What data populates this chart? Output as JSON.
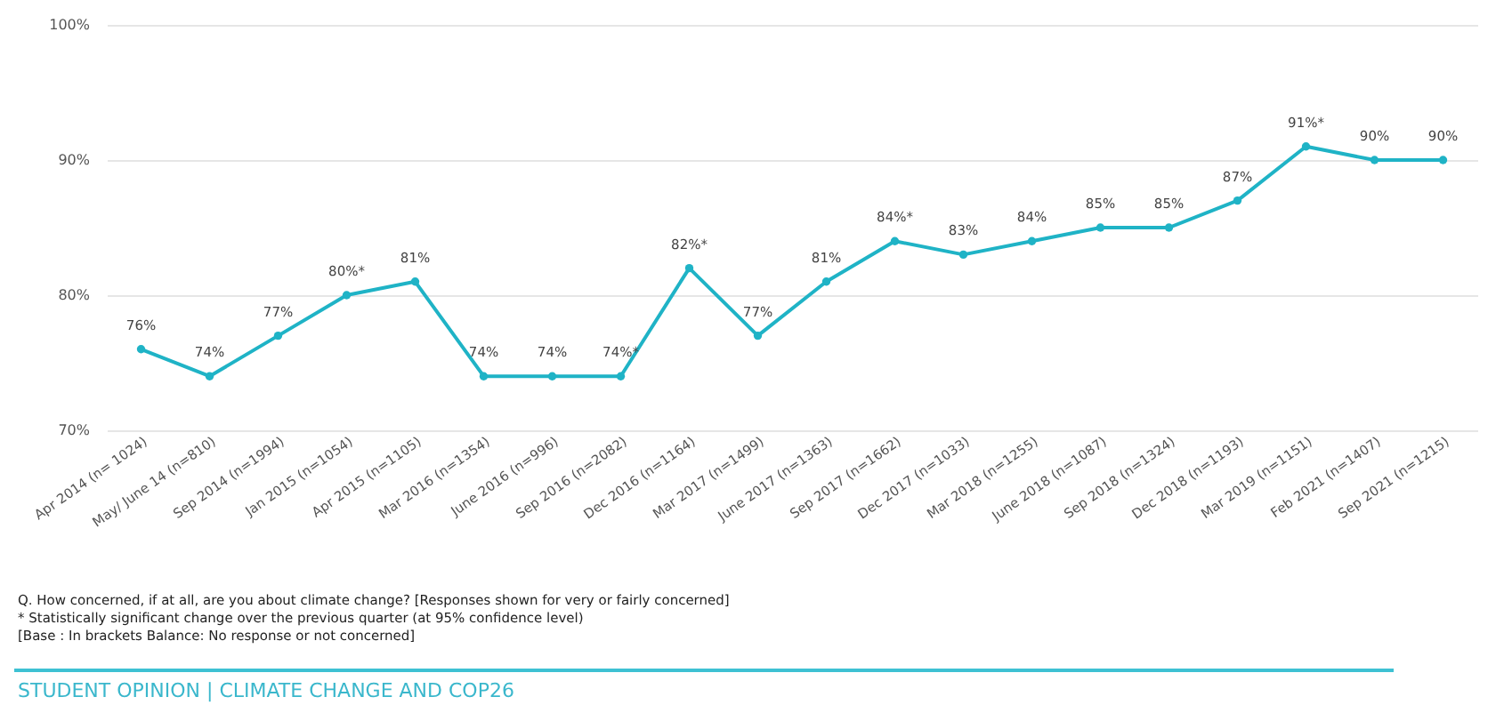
{
  "chart_data": {
    "type": "line",
    "categories": [
      "Apr 2014 (n= 1024)",
      "May/ June 14 (n=810)",
      "Sep 2014 (n=1994)",
      "Jan 2015 (n=1054)",
      "Apr 2015 (n=1105)",
      "Mar 2016 (n=1354)",
      "June 2016 (n=996)",
      "Sep 2016 (n=2082)",
      "Dec 2016 (n=1164)",
      "Mar 2017 (n=1499)",
      "June 2017 (n=1363)",
      "Sep 2017 (n=1662)",
      "Dec 2017 (n=1033)",
      "Mar 2018 (n=1255)",
      "June 2018 (n=1087)",
      "Sep 2018 (n=1324)",
      "Dec 2018 (n=1193)",
      "Mar 2019 (n=1151)",
      "Feb 2021 (n=1407)",
      "Sep 2021 (n=1215)"
    ],
    "series": [
      {
        "color": "#1fb3c6",
        "values": [
          76,
          74,
          77,
          80,
          81,
          74,
          74,
          74,
          82,
          77,
          81,
          84,
          83,
          84,
          85,
          85,
          87,
          91,
          90,
          90
        ],
        "value_labels": [
          "76%",
          "74%",
          "77%",
          "80%*",
          "81%",
          "74%",
          "74%",
          "74%*",
          "82%*",
          "77%",
          "81%",
          "84%*",
          "83%",
          "84%",
          "85%",
          "85%",
          "87%",
          "91%*",
          "90%",
          "90%"
        ]
      }
    ],
    "ylim": [
      70,
      100
    ],
    "yticks": [
      {
        "value": 70,
        "label": "70%"
      },
      {
        "value": 80,
        "label": "80%"
      },
      {
        "value": 90,
        "label": "90%"
      },
      {
        "value": 100,
        "label": "100%"
      }
    ],
    "grid": "y",
    "marker": "circle",
    "line_style": "solid",
    "annotations": [
      "Q. How concerned, if at all, are you about climate change? [Responses shown for very or fairly concerned]",
      " * Statistically significant change over the previous quarter (at 95% confidence level)",
      "[Base : In brackets Balance: No response or not concerned]",
      "STUDENT OPINION | CLIMATE CHANGE AND COP26"
    ]
  }
}
